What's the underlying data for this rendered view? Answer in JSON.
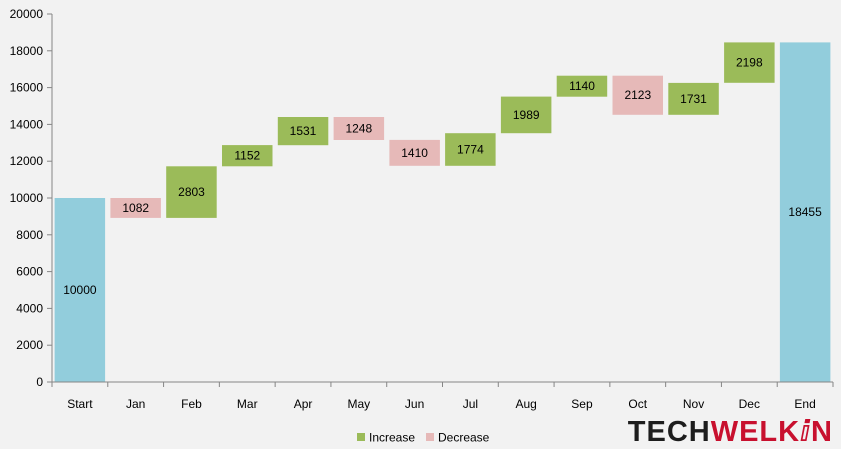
{
  "chart_data": {
    "type": "bar",
    "subtype": "waterfall",
    "categories": [
      "Start",
      "Jan",
      "Feb",
      "Mar",
      "Apr",
      "May",
      "Jun",
      "Jul",
      "Aug",
      "Sep",
      "Oct",
      "Nov",
      "Dec",
      "End"
    ],
    "bars": [
      {
        "kind": "total",
        "base": 0,
        "top": 10000,
        "label": "10000"
      },
      {
        "kind": "decrease",
        "base": 8918,
        "top": 10000,
        "label": "1082"
      },
      {
        "kind": "increase",
        "base": 8918,
        "top": 11721,
        "label": "2803"
      },
      {
        "kind": "increase",
        "base": 11721,
        "top": 12873,
        "label": "1152"
      },
      {
        "kind": "increase",
        "base": 12873,
        "top": 14404,
        "label": "1531"
      },
      {
        "kind": "decrease",
        "base": 13156,
        "top": 14404,
        "label": "1248"
      },
      {
        "kind": "decrease",
        "base": 11746,
        "top": 13156,
        "label": "1410"
      },
      {
        "kind": "increase",
        "base": 11746,
        "top": 13520,
        "label": "1774"
      },
      {
        "kind": "increase",
        "base": 13520,
        "top": 15509,
        "label": "1989"
      },
      {
        "kind": "increase",
        "base": 15509,
        "top": 16649,
        "label": "1140"
      },
      {
        "kind": "decrease",
        "base": 14526,
        "top": 16649,
        "label": "2123"
      },
      {
        "kind": "increase",
        "base": 14526,
        "top": 16257,
        "label": "1731"
      },
      {
        "kind": "increase",
        "base": 16257,
        "top": 18455,
        "label": "2198"
      },
      {
        "kind": "total",
        "base": 0,
        "top": 18455,
        "label": "18455"
      }
    ],
    "yticks": [
      "0",
      "2000",
      "4000",
      "6000",
      "8000",
      "10000",
      "12000",
      "14000",
      "16000",
      "18000",
      "20000"
    ],
    "ylim": [
      0,
      20000
    ],
    "grid": false,
    "legend": {
      "position": "bottom",
      "items": [
        {
          "name": "Increase",
          "kind": "increase"
        },
        {
          "name": "Decrease",
          "kind": "decrease"
        }
      ]
    },
    "colors": {
      "increase": "#9bbb59",
      "decrease": "#e6b9b8",
      "total": "#92cddc",
      "axis": "#868686",
      "text": "#000000"
    }
  },
  "logo": {
    "part1": "TECH",
    "part2": "WELK",
    "part3": "N"
  }
}
